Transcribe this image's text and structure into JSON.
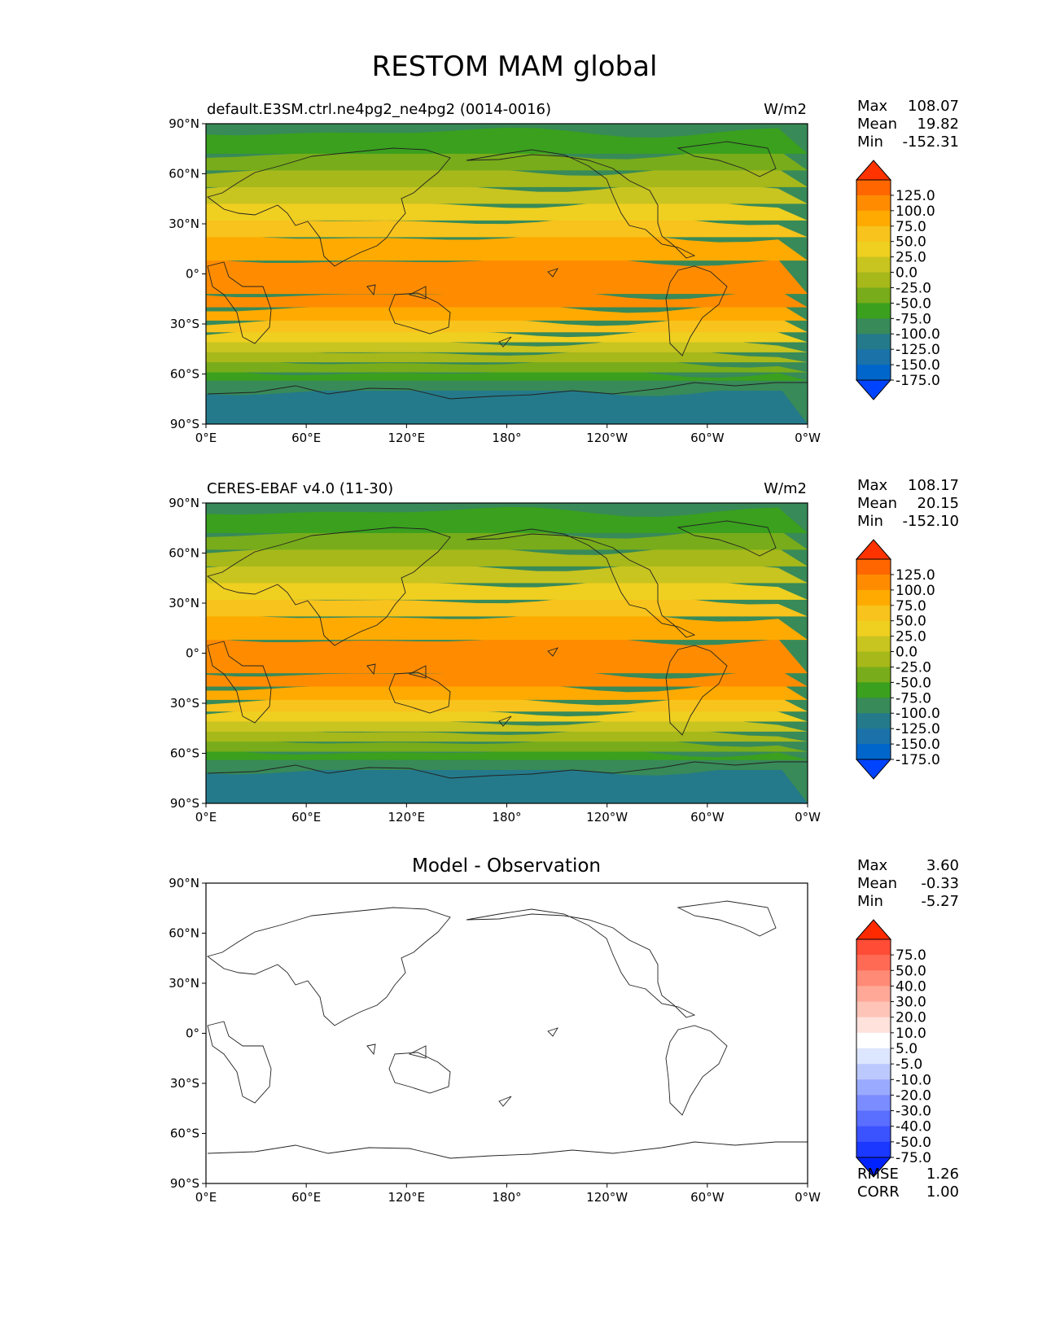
{
  "figure": {
    "title": "RESTOM MAM global"
  },
  "axes": {
    "lat_ticks": [
      "90°N",
      "60°N",
      "30°N",
      "0°",
      "30°S",
      "60°S",
      "90°S"
    ],
    "lon_ticks": [
      "0°E",
      "60°E",
      "120°E",
      "180°",
      "120°W",
      "60°W",
      "0°W"
    ]
  },
  "panels": [
    {
      "id": "test",
      "left_title": "default.E3SM.ctrl.ne4pg2_ne4pg2 (0014-0016)",
      "center_title": "",
      "right_title": "W/m2",
      "stats": [
        {
          "label": "Max",
          "value": "108.07"
        },
        {
          "label": "Mean",
          "value": "19.82"
        },
        {
          "label": "Min",
          "value": "-152.31"
        }
      ],
      "colorbar": {
        "labels": [
          "125.0",
          "100.0",
          "75.0",
          "50.0",
          "25.0",
          "0.0",
          "-25.0",
          "-50.0",
          "-75.0",
          "-100.0",
          "-125.0",
          "-150.0",
          "-175.0"
        ],
        "colors": [
          "#ff3300",
          "#ff6600",
          "#ff8c00",
          "#ffaa00",
          "#f7c31c",
          "#efcf20",
          "#c8c420",
          "#a6b81a",
          "#78ac1a",
          "#3aa01e",
          "#388a58",
          "#247a8a",
          "#1a72a8",
          "#0066cc",
          "#0044ff"
        ]
      }
    },
    {
      "id": "reference",
      "left_title": "CERES-EBAF v4.0 (11-30)",
      "center_title": "",
      "right_title": "W/m2",
      "stats": [
        {
          "label": "Max",
          "value": "108.17"
        },
        {
          "label": "Mean",
          "value": "20.15"
        },
        {
          "label": "Min",
          "value": "-152.10"
        }
      ],
      "colorbar": {
        "labels": [
          "125.0",
          "100.0",
          "75.0",
          "50.0",
          "25.0",
          "0.0",
          "-25.0",
          "-50.0",
          "-75.0",
          "-100.0",
          "-125.0",
          "-150.0",
          "-175.0"
        ],
        "colors": [
          "#ff3300",
          "#ff6600",
          "#ff8c00",
          "#ffaa00",
          "#f7c31c",
          "#efcf20",
          "#c8c420",
          "#a6b81a",
          "#78ac1a",
          "#3aa01e",
          "#388a58",
          "#247a8a",
          "#1a72a8",
          "#0066cc",
          "#0044ff"
        ]
      }
    },
    {
      "id": "diff",
      "left_title": "",
      "center_title": "Model - Observation",
      "right_title": "",
      "stats": [
        {
          "label": "Max",
          "value": "3.60"
        },
        {
          "label": "Mean",
          "value": "-0.33"
        },
        {
          "label": "Min",
          "value": "-5.27"
        }
      ],
      "extra_stats": [
        {
          "label": "RMSE",
          "value": "1.26"
        },
        {
          "label": "CORR",
          "value": "1.00"
        }
      ],
      "colorbar": {
        "labels": [
          "75.0",
          "50.0",
          "40.0",
          "30.0",
          "20.0",
          "10.0",
          "5.0",
          "-5.0",
          "-10.0",
          "-20.0",
          "-30.0",
          "-40.0",
          "-50.0",
          "-75.0"
        ],
        "colors": [
          "#ff2a00",
          "#ff4c36",
          "#ff6a55",
          "#ff8a75",
          "#ffa898",
          "#ffc4b8",
          "#ffe2dc",
          "#ffffff",
          "#dde6ff",
          "#bcc9ff",
          "#9aaaff",
          "#7a8cff",
          "#5a6eff",
          "#3b52ff",
          "#1a38ff",
          "#0022ff"
        ]
      }
    }
  ],
  "fields": {
    "test": {
      "lat_bands": [
        {
          "lat": 85,
          "color": "#3aa01e"
        },
        {
          "lat": 72,
          "color": "#78ac1a"
        },
        {
          "lat": 62,
          "color": "#a6b81a"
        },
        {
          "lat": 52,
          "color": "#c8c420"
        },
        {
          "lat": 42,
          "color": "#efcf20"
        },
        {
          "lat": 32,
          "color": "#f7c31c"
        },
        {
          "lat": 22,
          "color": "#ffaa00"
        },
        {
          "lat": 8,
          "color": "#ff8c00"
        },
        {
          "lat": -12,
          "color": "#ff8c00"
        },
        {
          "lat": -20,
          "color": "#ffaa00"
        },
        {
          "lat": -28,
          "color": "#f7c31c"
        },
        {
          "lat": -35,
          "color": "#efcf20"
        },
        {
          "lat": -41,
          "color": "#c8c420"
        },
        {
          "lat": -47,
          "color": "#a6b81a"
        },
        {
          "lat": -53,
          "color": "#78ac1a"
        },
        {
          "lat": -59,
          "color": "#3aa01e"
        },
        {
          "lat": -64,
          "color": "#388a58"
        },
        {
          "lat": -70,
          "color": "#247a8a"
        },
        {
          "lat": -90,
          "color": "#388a58"
        }
      ]
    },
    "reference": {
      "lat_bands": [
        {
          "lat": 85,
          "color": "#3aa01e"
        },
        {
          "lat": 72,
          "color": "#78ac1a"
        },
        {
          "lat": 62,
          "color": "#a6b81a"
        },
        {
          "lat": 52,
          "color": "#c8c420"
        },
        {
          "lat": 42,
          "color": "#efcf20"
        },
        {
          "lat": 32,
          "color": "#f7c31c"
        },
        {
          "lat": 22,
          "color": "#ffaa00"
        },
        {
          "lat": 8,
          "color": "#ff8c00"
        },
        {
          "lat": -12,
          "color": "#ff8c00"
        },
        {
          "lat": -20,
          "color": "#ffaa00"
        },
        {
          "lat": -28,
          "color": "#f7c31c"
        },
        {
          "lat": -35,
          "color": "#efcf20"
        },
        {
          "lat": -41,
          "color": "#c8c420"
        },
        {
          "lat": -47,
          "color": "#a6b81a"
        },
        {
          "lat": -53,
          "color": "#78ac1a"
        },
        {
          "lat": -59,
          "color": "#3aa01e"
        },
        {
          "lat": -64,
          "color": "#388a58"
        },
        {
          "lat": -70,
          "color": "#247a8a"
        },
        {
          "lat": -90,
          "color": "#388a58"
        }
      ]
    },
    "diff": {
      "lat_bands": [
        {
          "lat": -90,
          "color": "#ffffff"
        }
      ]
    }
  }
}
